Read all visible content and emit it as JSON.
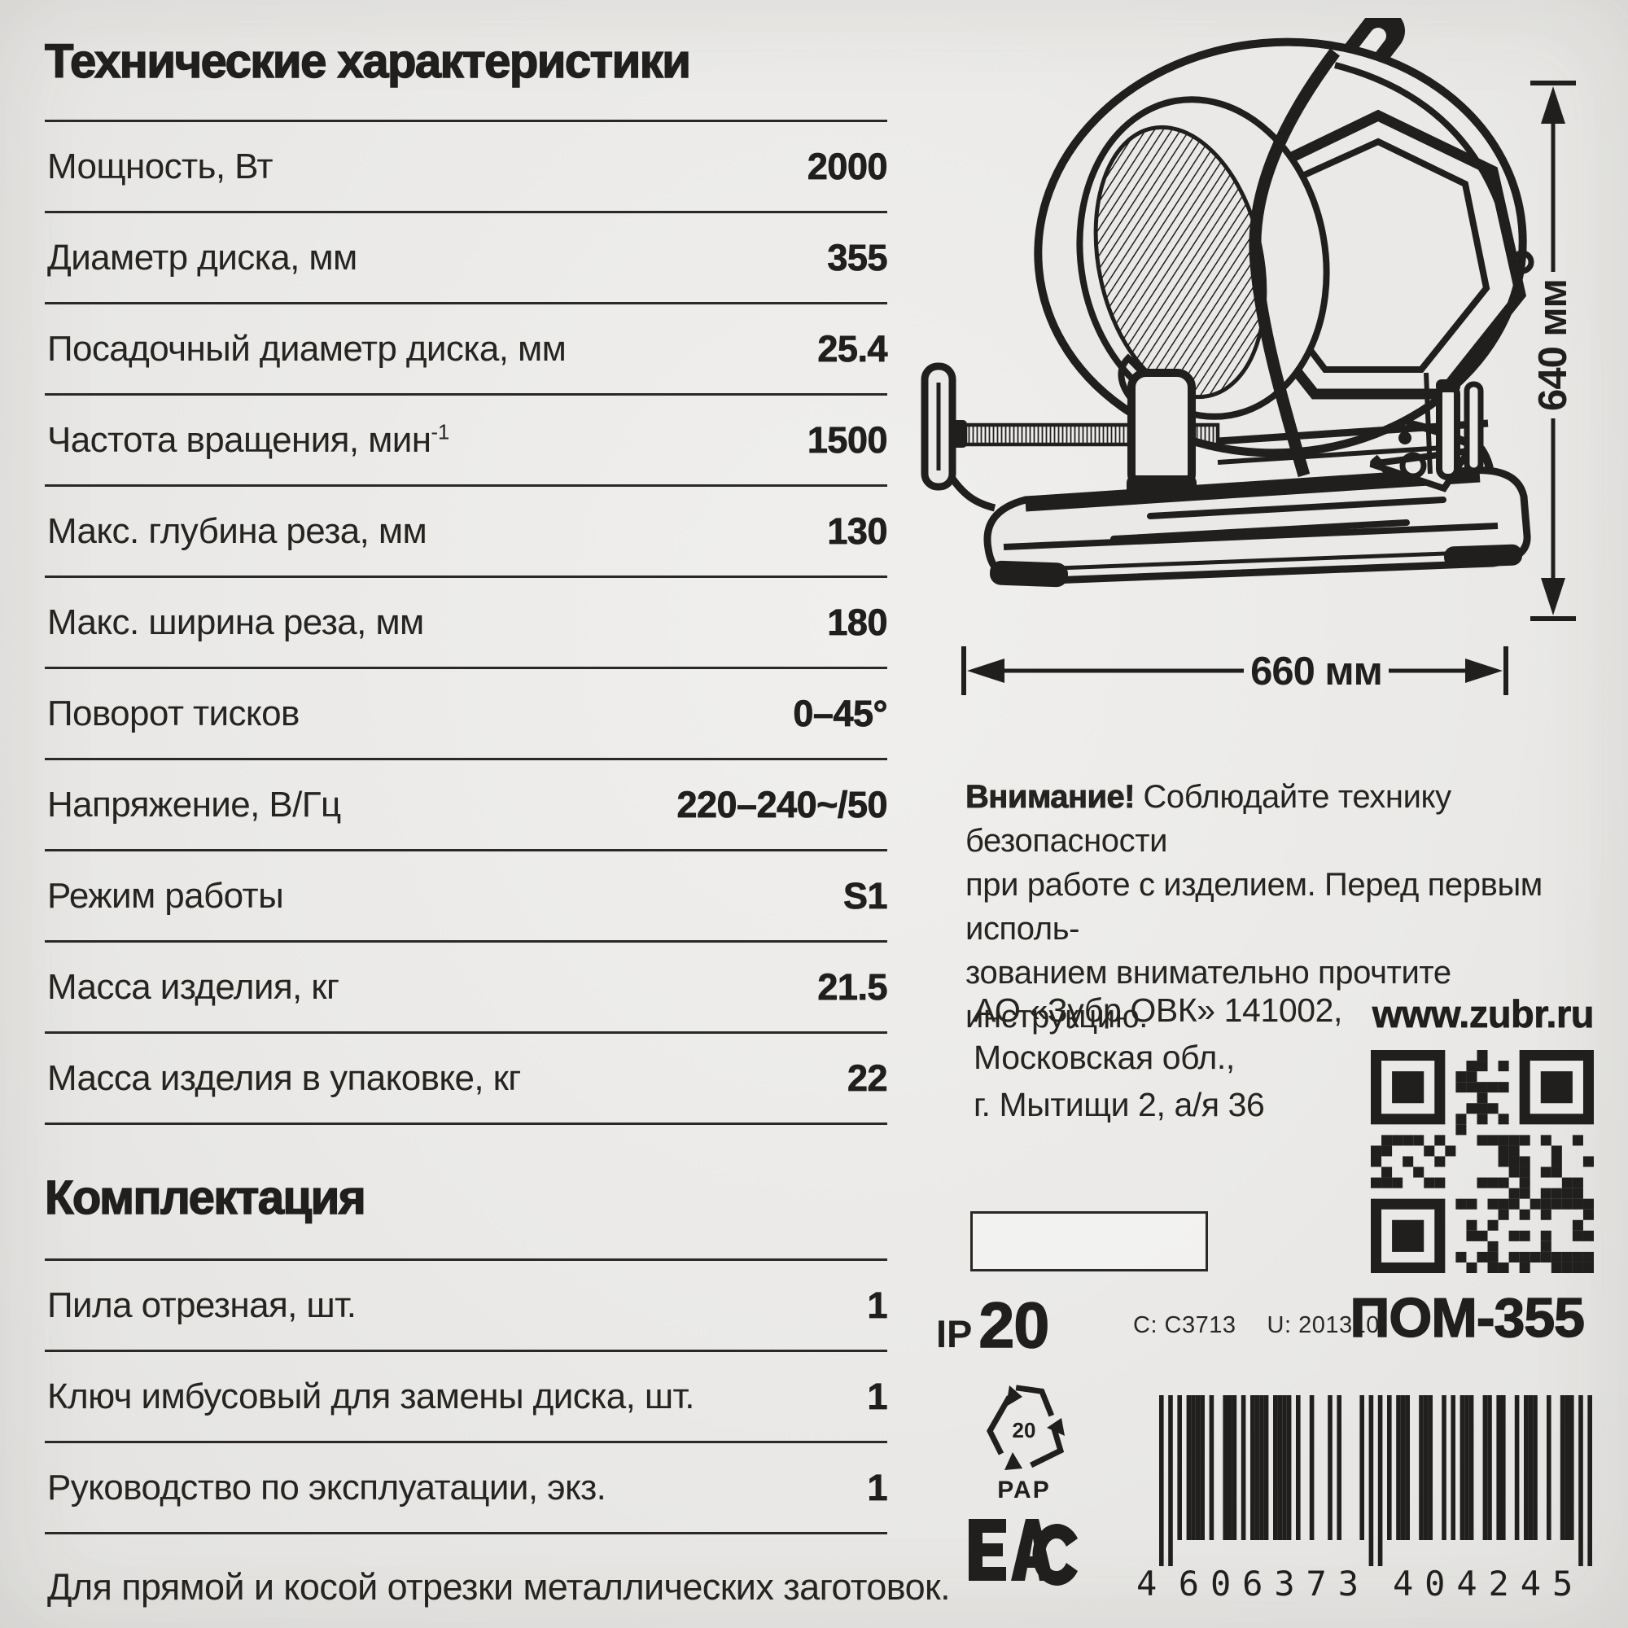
{
  "page": {
    "bg": "#eae9e7",
    "ink": "#211f1d"
  },
  "specs": {
    "title": "Технические характеристики",
    "rows": [
      {
        "label": "Мощность,  Вт",
        "value": "2000"
      },
      {
        "label": "Диаметр диска, мм",
        "value": "355"
      },
      {
        "label": "Посадочный диаметр диска, мм",
        "value": "25.4"
      },
      {
        "label": "Частота вращения, мин",
        "sup": "-1",
        "value": "1500"
      },
      {
        "label": "Макс. глубина реза, мм",
        "value": "130"
      },
      {
        "label": "Макс. ширина реза, мм",
        "value": "180"
      },
      {
        "label": "Поворот тисков",
        "value": "0–45°"
      },
      {
        "label": "Напряжение, В/Гц",
        "value": "220–240~/50"
      },
      {
        "label": "Режим работы",
        "value": "S1"
      },
      {
        "label": "Масса изделия, кг",
        "value": "21.5"
      },
      {
        "label": "Масса изделия в упаковке, кг",
        "value": "22"
      }
    ]
  },
  "package": {
    "title": "Комплектация",
    "rows": [
      {
        "label": "Пила отрезная, шт.",
        "value": "1"
      },
      {
        "label": "Ключ имбусовый для замены диска, шт.",
        "value": "1"
      },
      {
        "label": "Руководство по эксплуатации, экз.",
        "value": "1"
      }
    ],
    "footer": "Для прямой и косой отрезки металлических заготовок."
  },
  "diagram": {
    "height_label": "640 мм",
    "width_label": "660 мм"
  },
  "warning": {
    "bold_lead": "Внимание!",
    "lines": [
      "Соблюдайте технику безопасности",
      "при работе с изделием. Перед первым исполь-",
      "зованием внимательно прочтите инструкцию."
    ]
  },
  "company": {
    "address_lines": [
      "АО «Зубр ОВК» 141002,",
      "Московская обл.,",
      "г. Мытищи 2, а/я 36"
    ],
    "website": "www.zubr.ru"
  },
  "certification": {
    "ip_prefix": "IP",
    "ip_value": "20",
    "c_code": "C: C3713",
    "u_code": "U: 201310",
    "model": "ПОМ-355",
    "recycle_number": "20",
    "recycle_material": "PAP",
    "eac_label": "ЕАС",
    "barcode_digits": "4606373404245",
    "barcode_display": [
      "4",
      "606373",
      "404245"
    ]
  }
}
